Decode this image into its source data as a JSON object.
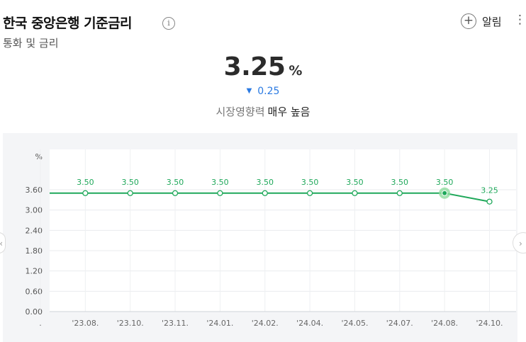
{
  "header": {
    "title": "한국 중앙은행 기준금리",
    "info_icon": "info-icon",
    "subtitle": "통화 및 금리",
    "alarm_label": "알림",
    "alarm_icon": "plus-circle-icon",
    "menu_icon": "kebab-menu-icon"
  },
  "summary": {
    "rate": "3.25",
    "unit": "%",
    "change_direction": "down",
    "change": "0.25",
    "impact_label": "시장영향력",
    "impact_level": "매우 높음"
  },
  "colors": {
    "line": "#1fa85a",
    "down": "#2a7ae2",
    "highlight": "#8fdc9d"
  },
  "nav": {
    "prev_icon": "chevron-left-icon",
    "next_icon": "chevron-right-icon"
  },
  "chart_data": {
    "type": "line",
    "unit_label": "%",
    "yticks": [
      "3.60",
      "3.00",
      "2.40",
      "1.80",
      "1.20",
      "0.60",
      "0.00"
    ],
    "x_tick_labels": [
      ".",
      "'23.08.",
      "'23.10.",
      "'23.11.",
      "'24.01.",
      "'24.02.",
      "'24.04.",
      "'24.05.",
      "'24.07.",
      "'24.08.",
      "'24.10."
    ],
    "points": [
      {
        "label": "'23.08.",
        "value": 3.5
      },
      {
        "label": "'23.10.",
        "value": 3.5
      },
      {
        "label": "'23.11.",
        "value": 3.5
      },
      {
        "label": "'24.01.",
        "value": 3.5
      },
      {
        "label": "'24.02.",
        "value": 3.5
      },
      {
        "label": "'24.04.",
        "value": 3.5
      },
      {
        "label": "'24.05.",
        "value": 3.5
      },
      {
        "label": "'24.07.",
        "value": 3.5
      },
      {
        "label": "'24.08.",
        "value": 3.5
      },
      {
        "label": "'24.10.",
        "value": 3.25
      }
    ],
    "point_labels": [
      "3.50",
      "3.50",
      "3.50",
      "3.50",
      "3.50",
      "3.50",
      "3.50",
      "3.50",
      "3.50",
      "3.25"
    ],
    "line_starts_before_first_point": true,
    "highlighted_index": 8,
    "grid": true
  }
}
